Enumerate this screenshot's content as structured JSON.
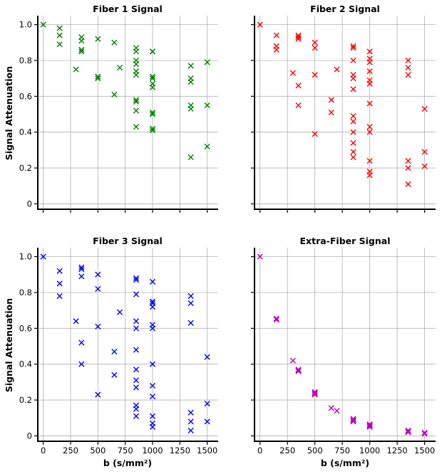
{
  "chart_data": [
    {
      "type": "scatter",
      "title": "Fiber 1 Signal",
      "xlabel": "",
      "ylabel": "Signal Attenuation",
      "color": "#008000",
      "marker": "x",
      "xlim": [
        -50,
        1600
      ],
      "ylim": [
        -0.03,
        1.05
      ],
      "yticks": [
        "0",
        "0.2",
        "0.4",
        "0.6",
        "0.8",
        "1.0"
      ],
      "xticks": [],
      "grid": true,
      "points": [
        [
          0,
          1.0
        ],
        [
          150,
          0.98
        ],
        [
          150,
          0.94
        ],
        [
          150,
          0.89
        ],
        [
          300,
          0.75
        ],
        [
          350,
          0.93
        ],
        [
          350,
          0.91
        ],
        [
          350,
          0.86
        ],
        [
          350,
          0.85
        ],
        [
          500,
          0.92
        ],
        [
          500,
          0.71
        ],
        [
          500,
          0.7
        ],
        [
          650,
          0.9
        ],
        [
          650,
          0.61
        ],
        [
          700,
          0.76
        ],
        [
          850,
          0.87
        ],
        [
          850,
          0.85
        ],
        [
          850,
          0.8
        ],
        [
          850,
          0.78
        ],
        [
          850,
          0.74
        ],
        [
          850,
          0.72
        ],
        [
          850,
          0.58
        ],
        [
          850,
          0.57
        ],
        [
          850,
          0.52
        ],
        [
          850,
          0.43
        ],
        [
          1000,
          0.85
        ],
        [
          1000,
          0.85
        ],
        [
          1000,
          0.71
        ],
        [
          1000,
          0.7
        ],
        [
          1000,
          0.67
        ],
        [
          1000,
          0.65
        ],
        [
          1000,
          0.51
        ],
        [
          1000,
          0.5
        ],
        [
          1000,
          0.42
        ],
        [
          1000,
          0.41
        ],
        [
          1350,
          0.77
        ],
        [
          1350,
          0.7
        ],
        [
          1350,
          0.68
        ],
        [
          1350,
          0.55
        ],
        [
          1350,
          0.53
        ],
        [
          1350,
          0.26
        ],
        [
          1500,
          0.79
        ],
        [
          1500,
          0.55
        ],
        [
          1500,
          0.32
        ]
      ]
    },
    {
      "type": "scatter",
      "title": "Fiber 2 Signal",
      "xlabel": "",
      "ylabel": "",
      "color": "#ff0000",
      "marker": "x",
      "xlim": [
        -50,
        1600
      ],
      "ylim": [
        -0.03,
        1.05
      ],
      "yticks": [],
      "xticks": [],
      "grid": true,
      "points": [
        [
          0,
          1.0
        ],
        [
          150,
          0.94
        ],
        [
          150,
          0.88
        ],
        [
          150,
          0.86
        ],
        [
          300,
          0.73
        ],
        [
          350,
          0.94
        ],
        [
          350,
          0.93
        ],
        [
          350,
          0.92
        ],
        [
          350,
          0.66
        ],
        [
          350,
          0.55
        ],
        [
          500,
          0.9
        ],
        [
          500,
          0.87
        ],
        [
          500,
          0.72
        ],
        [
          500,
          0.39
        ],
        [
          650,
          0.58
        ],
        [
          650,
          0.51
        ],
        [
          700,
          0.75
        ],
        [
          850,
          0.88
        ],
        [
          850,
          0.87
        ],
        [
          850,
          0.8
        ],
        [
          850,
          0.72
        ],
        [
          850,
          0.7
        ],
        [
          850,
          0.64
        ],
        [
          850,
          0.49
        ],
        [
          850,
          0.46
        ],
        [
          850,
          0.4
        ],
        [
          850,
          0.34
        ],
        [
          850,
          0.29
        ],
        [
          850,
          0.26
        ],
        [
          1000,
          0.85
        ],
        [
          1000,
          0.81
        ],
        [
          1000,
          0.79
        ],
        [
          1000,
          0.74
        ],
        [
          1000,
          0.69
        ],
        [
          1000,
          0.67
        ],
        [
          1000,
          0.56
        ],
        [
          1000,
          0.43
        ],
        [
          1000,
          0.4
        ],
        [
          1000,
          0.24
        ],
        [
          1000,
          0.18
        ],
        [
          1000,
          0.16
        ],
        [
          1350,
          0.8
        ],
        [
          1350,
          0.76
        ],
        [
          1350,
          0.72
        ],
        [
          1350,
          0.24
        ],
        [
          1350,
          0.2
        ],
        [
          1350,
          0.11
        ],
        [
          1500,
          0.53
        ],
        [
          1500,
          0.29
        ],
        [
          1500,
          0.21
        ]
      ]
    },
    {
      "type": "scatter",
      "title": "Fiber 3 Signal",
      "xlabel": "b (s/mm²)",
      "ylabel": "Signal Attenuation",
      "color": "#0000ff",
      "marker": "x",
      "xlim": [
        -50,
        1600
      ],
      "ylim": [
        -0.03,
        1.05
      ],
      "yticks": [
        "0",
        "0.2",
        "0.4",
        "0.6",
        "0.8",
        "1.0"
      ],
      "xticks": [
        "0",
        "250",
        "500",
        "750",
        "1000",
        "1250",
        "1500"
      ],
      "grid": true,
      "points": [
        [
          0,
          1.0
        ],
        [
          150,
          0.92
        ],
        [
          150,
          0.85
        ],
        [
          150,
          0.78
        ],
        [
          300,
          0.64
        ],
        [
          350,
          0.94
        ],
        [
          350,
          0.93
        ],
        [
          350,
          0.89
        ],
        [
          350,
          0.52
        ],
        [
          350,
          0.4
        ],
        [
          500,
          0.9
        ],
        [
          500,
          0.82
        ],
        [
          500,
          0.61
        ],
        [
          500,
          0.23
        ],
        [
          650,
          0.47
        ],
        [
          650,
          0.34
        ],
        [
          700,
          0.69
        ],
        [
          850,
          0.88
        ],
        [
          850,
          0.87
        ],
        [
          850,
          0.79
        ],
        [
          850,
          0.64
        ],
        [
          850,
          0.6
        ],
        [
          850,
          0.48
        ],
        [
          850,
          0.37
        ],
        [
          850,
          0.31
        ],
        [
          850,
          0.27
        ],
        [
          850,
          0.17
        ],
        [
          850,
          0.15
        ],
        [
          850,
          0.11
        ],
        [
          1000,
          0.86
        ],
        [
          1000,
          0.75
        ],
        [
          1000,
          0.74
        ],
        [
          1000,
          0.72
        ],
        [
          1000,
          0.62
        ],
        [
          1000,
          0.6
        ],
        [
          1000,
          0.4
        ],
        [
          1000,
          0.28
        ],
        [
          1000,
          0.22
        ],
        [
          1000,
          0.11
        ],
        [
          1000,
          0.07
        ],
        [
          1000,
          0.05
        ],
        [
          1350,
          0.78
        ],
        [
          1350,
          0.74
        ],
        [
          1350,
          0.63
        ],
        [
          1350,
          0.13
        ],
        [
          1350,
          0.08
        ],
        [
          1350,
          0.03
        ],
        [
          1500,
          0.44
        ],
        [
          1500,
          0.18
        ],
        [
          1500,
          0.08
        ]
      ]
    },
    {
      "type": "scatter",
      "title": "Extra-Fiber Signal",
      "xlabel": "b (s/mm²)",
      "ylabel": "",
      "color": "#bf00bf",
      "marker": "x",
      "xlim": [
        -50,
        1600
      ],
      "ylim": [
        -0.03,
        1.05
      ],
      "yticks": [],
      "xticks": [
        "0",
        "250",
        "500",
        "750",
        "1000",
        "1250",
        "1500"
      ],
      "grid": true,
      "points": [
        [
          0,
          1.0
        ],
        [
          150,
          0.655
        ],
        [
          150,
          0.648
        ],
        [
          300,
          0.42
        ],
        [
          350,
          0.37
        ],
        [
          350,
          0.365
        ],
        [
          350,
          0.36
        ],
        [
          500,
          0.245
        ],
        [
          500,
          0.24
        ],
        [
          500,
          0.235
        ],
        [
          500,
          0.23
        ],
        [
          650,
          0.155
        ],
        [
          700,
          0.14
        ],
        [
          850,
          0.095
        ],
        [
          850,
          0.09
        ],
        [
          850,
          0.085
        ],
        [
          850,
          0.08
        ],
        [
          1000,
          0.065
        ],
        [
          1000,
          0.06
        ],
        [
          1000,
          0.055
        ],
        [
          1000,
          0.05
        ],
        [
          1350,
          0.03
        ],
        [
          1350,
          0.025
        ],
        [
          1350,
          0.02
        ],
        [
          1500,
          0.018
        ],
        [
          1500,
          0.012
        ]
      ]
    }
  ]
}
